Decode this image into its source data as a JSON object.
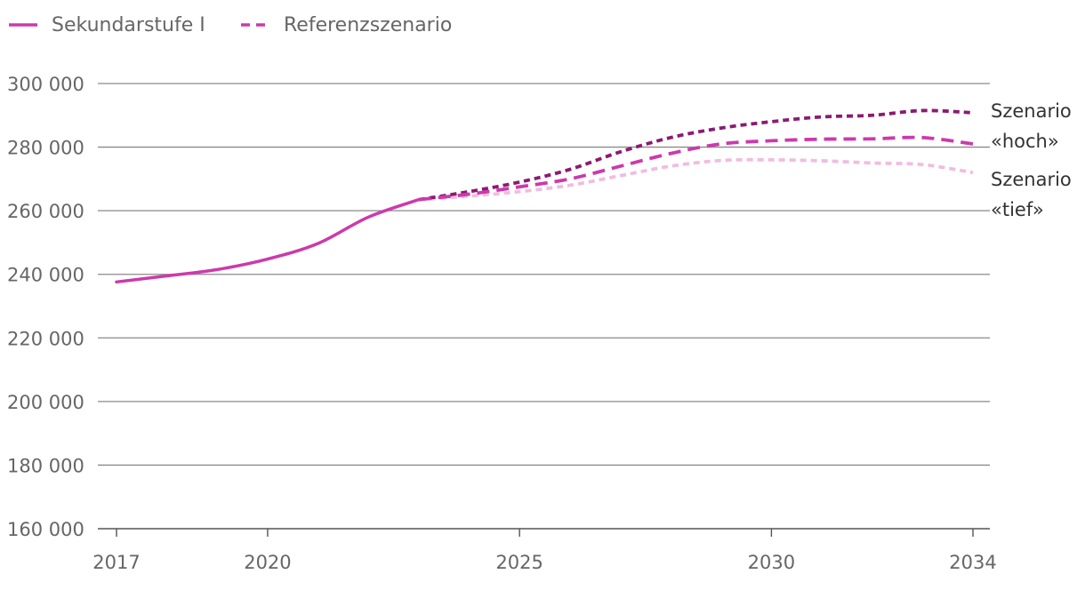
{
  "chart_data": {
    "type": "line",
    "legend": [
      {
        "label": "Sekundarstufe I",
        "style": "solid",
        "color": "#cc3aaa"
      },
      {
        "label": "Referenzszenario",
        "style": "dashed",
        "color": "#cc3aaa"
      }
    ],
    "x_ticks": [
      "2017",
      "2020",
      "2025",
      "2030",
      "2034"
    ],
    "y_ticks": [
      "160 000",
      "180 000",
      "200 000",
      "220 000",
      "240 000",
      "260 000",
      "280 000",
      "300 000"
    ],
    "ylim": [
      160000,
      300000
    ],
    "xlim": [
      2017,
      2034
    ],
    "grid": true,
    "series": [
      {
        "name": "Sekundarstufe I",
        "style": "solid",
        "color": "#cc3aaa",
        "x": [
          2017,
          2018,
          2019,
          2020,
          2021,
          2022,
          2023
        ],
        "values": [
          237600,
          239500,
          241500,
          244800,
          249700,
          258000,
          263500
        ]
      },
      {
        "name": "Referenzszenario",
        "style": "dashed",
        "color": "#cc3aaa",
        "x": [
          2023,
          2024,
          2025,
          2026,
          2027,
          2028,
          2029,
          2030,
          2031,
          2032,
          2033,
          2034
        ],
        "values": [
          263500,
          265200,
          267500,
          270000,
          274000,
          278000,
          281000,
          282000,
          282500,
          282600,
          283000,
          281000
        ]
      },
      {
        "style": "dotted",
        "color": "#8b1a72",
        "x": [
          2023,
          2024,
          2025,
          2026,
          2027,
          2028,
          2029,
          2030,
          2031,
          2032,
          2033,
          2034
        ],
        "values": [
          263500,
          266000,
          269000,
          273000,
          278500,
          283000,
          286000,
          288000,
          289500,
          290000,
          291500,
          290800
        ]
      },
      {
        "style": "dotted",
        "color": "#efbde2",
        "x": [
          2023,
          2024,
          2025,
          2026,
          2027,
          2028,
          2029,
          2030,
          2031,
          2032,
          2033,
          2034
        ],
        "values": [
          263500,
          264600,
          266000,
          268000,
          271000,
          274000,
          275800,
          276000,
          275700,
          275000,
          274500,
          272000
        ]
      }
    ],
    "annotations": [
      {
        "lines": [
          "Szenario",
          "«hoch»"
        ]
      },
      {
        "lines": [
          "Szenario",
          "«tief»"
        ]
      }
    ]
  }
}
